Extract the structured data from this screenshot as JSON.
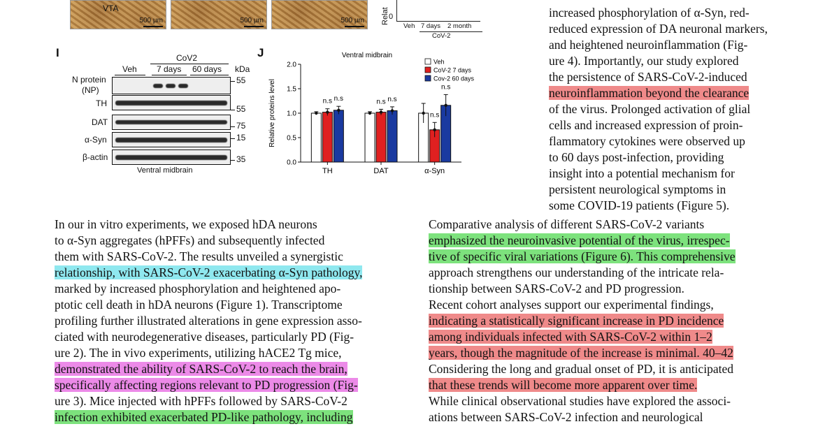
{
  "top_images": {
    "labels": [
      "VTA"
    ],
    "scale_bars": [
      "500 µm",
      "500 µm",
      "500 µm"
    ]
  },
  "top_chart_fragment": {
    "y_label": "Relat",
    "y_zero": "0",
    "x_ticks": [
      "Veh",
      "7 days",
      "2 month"
    ],
    "group_label": "CoV-2"
  },
  "panel_i": {
    "letter": "I",
    "group_header": "CoV2",
    "lane_headers": [
      "Veh",
      "7 days",
      "60 days"
    ],
    "kda_header": "kDa",
    "rows": [
      {
        "label_line1": "N protein",
        "label_line2": "(NP)",
        "kda": "55"
      },
      {
        "label_line1": "TH",
        "label_line2": "",
        "kda": "55"
      },
      {
        "label_line1": "DAT",
        "label_line2": "",
        "kda": "75"
      },
      {
        "label_line1": "α-Syn",
        "label_line2": "",
        "kda": "15"
      },
      {
        "label_line1": "β-actin",
        "label_line2": "",
        "kda": "35"
      }
    ],
    "caption": "Ventral midbrain"
  },
  "chart_data": {
    "type": "bar",
    "letter": "J",
    "title": "Ventral midbrain",
    "ylabel": "Relative proteins level",
    "xlabel": "",
    "ylim": [
      0,
      2.0
    ],
    "yticks": [
      "0.0",
      "0.5",
      "1.0",
      "1.5",
      "2.0"
    ],
    "categories": [
      "TH",
      "DAT",
      "α-Syn"
    ],
    "series": [
      {
        "name": "Veh",
        "color": "#ffffff",
        "values": [
          1.0,
          1.0,
          1.0
        ],
        "errors": [
          0.03,
          0.03,
          0.2
        ]
      },
      {
        "name": "CoV-2 7 days",
        "color": "#e02020",
        "values": [
          1.02,
          1.02,
          0.66
        ],
        "errors": [
          0.07,
          0.06,
          0.15
        ]
      },
      {
        "name": "Cov-2 60 days",
        "color": "#1a3aa0",
        "values": [
          1.06,
          1.05,
          1.16
        ],
        "errors": [
          0.08,
          0.08,
          0.22
        ]
      }
    ],
    "significance": [
      "n.s",
      "n.s",
      "n.s",
      "n.s",
      "n.s",
      "n.s"
    ],
    "legend_position": "top-right"
  },
  "right_top_lines": [
    "increased phosphorylation of α-Syn, red-",
    "reduced expression of DA neuronal markers,",
    "and heightened neuroinflammation (Fig-",
    "ure 4). Importantly, our study explored",
    "the persistence of SARS-CoV-2-induced",
    "neuroinflammation beyond the clearance",
    "of the virus. Prolonged activation of glial",
    "cells and increased expression of proin-",
    "flammatory cytokines were observed up",
    "to 60 days post-infection, providing",
    "insight into a potential mechanism for",
    "persistent neurological symptoms in",
    "some COVID-19 patients (Figure 5)."
  ],
  "left_lines": [
    "In our in vitro experiments, we exposed hDA neurons",
    "to α-Syn aggregates (hPFFs) and subsequently infected",
    "them with SARS-CoV-2. The results unveiled a synergistic",
    "relationship, with SARS-CoV-2 exacerbating α-Syn pathology,",
    "marked by increased phosphorylation and heightened apo-",
    "ptotic cell death in hDA neurons (Figure 1). Transcriptome",
    "profiling further illustrated alterations in gene expression asso-",
    "ciated with neurodegenerative diseases, particularly PD (Fig-",
    "ure 2). The in vivo experiments, utilizing hACE2 Tg mice,",
    "demonstrated the ability of SARS-CoV-2 to reach the brain,",
    "specifically affecting regions relevant to PD progression (Fig-",
    "ure 3). Mice injected with hPFFs followed by SARS-CoV-2",
    "infection exhibited exacerbated PD-like pathology, including"
  ],
  "right_bottom_lines": [
    "Comparative analysis of different SARS-CoV-2 variants",
    "emphasized the neuroinvasive potential of the virus, irrespec-",
    "tive of specific viral variations (Figure 6). This comprehensive",
    "approach strengthens our understanding of the intricate rela-",
    "tionship between SARS-CoV-2 and PD progression.",
    "Recent cohort analyses support our experimental findings,",
    "indicating a statistically significant increase in PD incidence",
    "among individuals infected with SARS-CoV-2 within 1–2",
    "years, though the magnitude of the increase is minimal. 40–42",
    "Considering the long and gradual onset of PD, it is anticipated",
    "that these trends will become more apparent over time.",
    "While clinical observational studies have explored the associ-",
    "ations between SARS-CoV-2 infection and neurological"
  ]
}
